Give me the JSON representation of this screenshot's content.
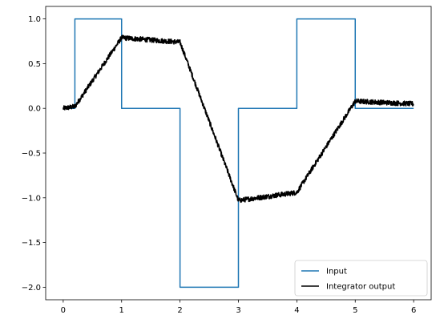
{
  "chart_data": {
    "type": "line",
    "title": "",
    "xlabel": "",
    "ylabel": "",
    "xlim": [
      -0.3,
      6.3
    ],
    "ylim": [
      -2.14,
      1.14
    ],
    "xticks": [
      0,
      1,
      2,
      3,
      4,
      5,
      6
    ],
    "xtick_labels": [
      "0",
      "1",
      "2",
      "3",
      "4",
      "5",
      "6"
    ],
    "yticks": [
      1.0,
      0.5,
      0.0,
      -0.5,
      -1.0,
      -1.5,
      -2.0
    ],
    "ytick_labels": [
      "1.0",
      "0.5",
      "0.0",
      "−0.5",
      "−1.0",
      "−1.5",
      "−2.0"
    ],
    "grid": false,
    "legend_placement": "lower-right",
    "series": [
      {
        "name": "Input",
        "color": "#1f77b4",
        "step": true,
        "x": [
          0,
          0.2,
          0.2,
          1,
          1,
          2,
          2,
          3,
          3,
          4,
          4,
          5,
          5,
          6
        ],
        "y": [
          0,
          0,
          1,
          1,
          0,
          0,
          -2,
          -2,
          0,
          0,
          1,
          1,
          0,
          0
        ]
      },
      {
        "name": "Integrator output",
        "color": "#000000",
        "noisy": true,
        "x": [
          0,
          0.2,
          1.0,
          2.0,
          3.0,
          4.0,
          5.0,
          6.0
        ],
        "y": [
          0,
          0.02,
          0.79,
          0.74,
          -1.03,
          -0.94,
          0.08,
          0.05
        ]
      }
    ],
    "legend": {
      "entries": [
        "Input",
        "Integrator output"
      ]
    }
  }
}
